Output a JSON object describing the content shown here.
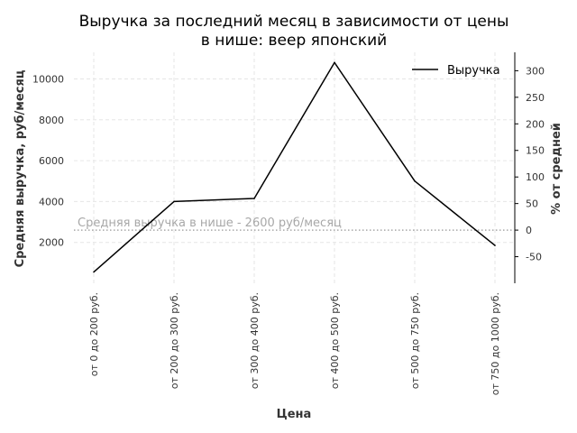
{
  "chart_data": {
    "type": "line",
    "title_lines": [
      "Выручка за последний месяц в зависимости от цены",
      "в нише: веер японский"
    ],
    "xlabel": "Цена",
    "ylabel": "Средняя выручка, руб/месяц",
    "y2label": "% от средней",
    "categories": [
      "от 0 до 200 руб.",
      "от 200 до 300 руб.",
      "от 300 до 400 руб.",
      "от 400 до 500 руб.",
      "от 500 до 750 руб.",
      "от 750 до 1000 руб."
    ],
    "series": [
      {
        "name": "Выручка",
        "values": [
          550,
          4000,
          4150,
          10800,
          5000,
          1850
        ],
        "color": "#000000"
      }
    ],
    "ylim": [
      0,
      11300
    ],
    "yticks": [
      2000,
      4000,
      6000,
      8000,
      10000
    ],
    "y2ticks": [
      -50,
      0,
      50,
      100,
      150,
      200,
      250,
      300
    ],
    "reference": {
      "value": 2600,
      "label": "Средняя выручка в нише - 2600 руб/месяц",
      "color": "#a8a8a8"
    },
    "grid": true,
    "legend_position": "top-right"
  }
}
